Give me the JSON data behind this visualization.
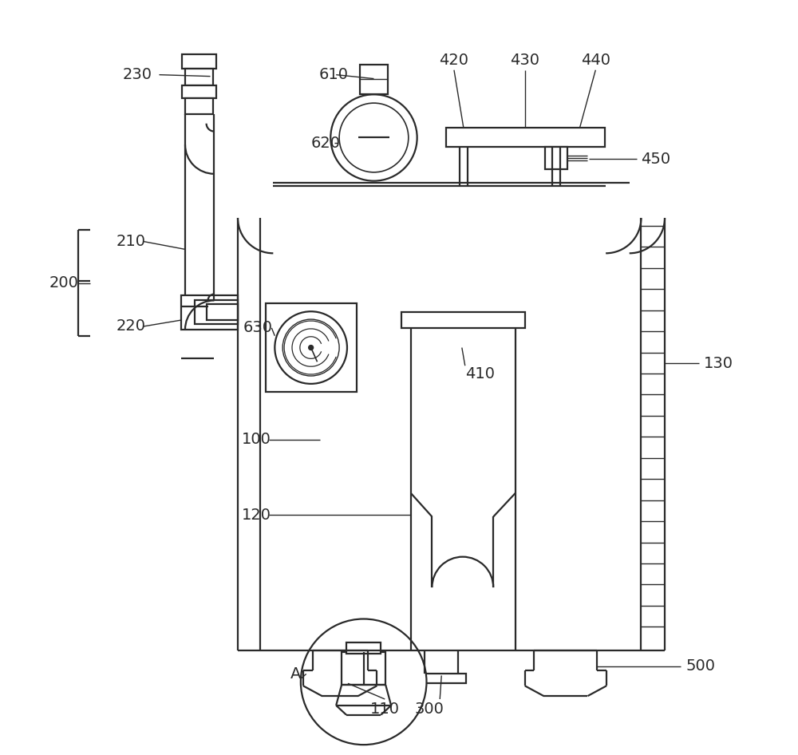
{
  "bg_color": "#ffffff",
  "line_color": "#2a2a2a",
  "lw": 1.6,
  "figsize": [
    10.0,
    9.46
  ],
  "dpi": 100
}
